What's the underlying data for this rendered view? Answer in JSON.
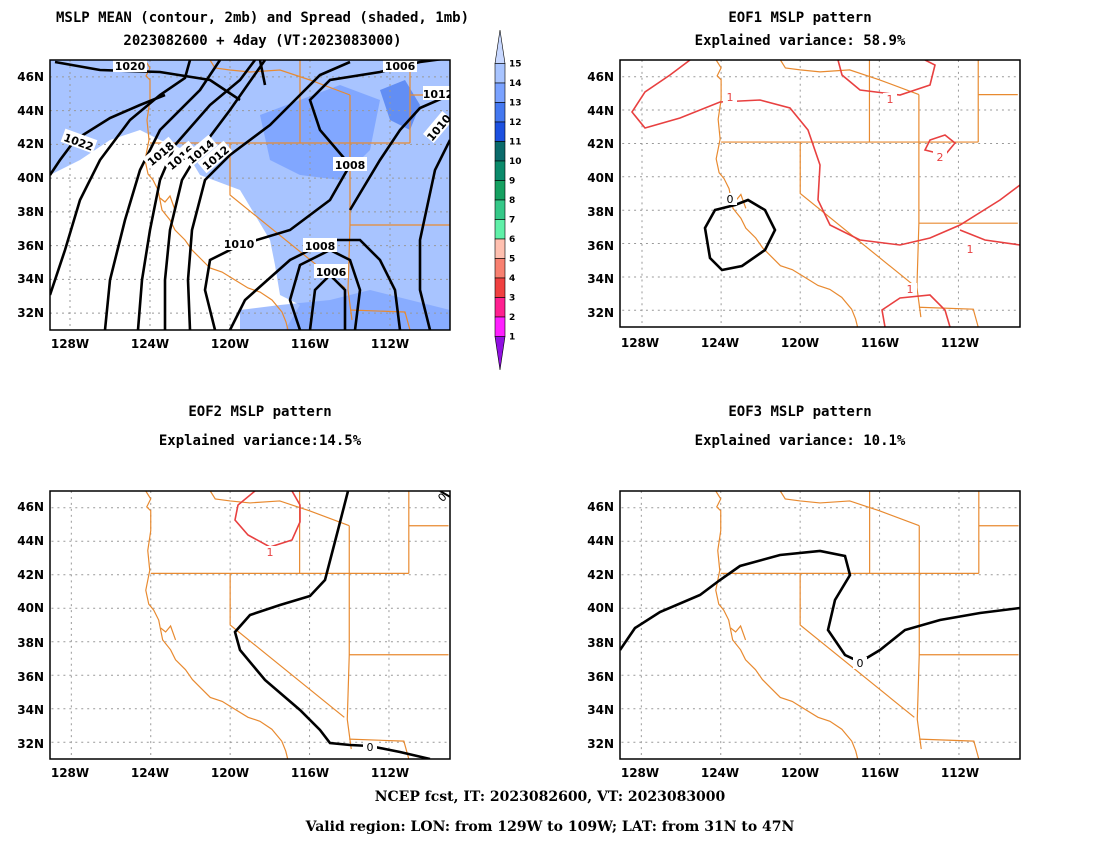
{
  "panels": [
    {
      "id": "p1",
      "title_lines": [
        "MSLP MEAN (contour, 2mb) and Spread (shaded, 1mb)",
        "2023082600 + 4day (VT:2023083000)"
      ]
    },
    {
      "id": "p2",
      "title_lines": [
        "EOF1 MSLP pattern",
        "Explained variance: 58.9%"
      ]
    },
    {
      "id": "p3",
      "title_lines": [
        "EOF2 MSLP pattern",
        "Explained variance:14.5%"
      ]
    },
    {
      "id": "p4",
      "title_lines": [
        "EOF3 MSLP pattern",
        "Explained variance: 10.1%"
      ]
    }
  ],
  "axes": {
    "lon_range": [
      -129,
      -109
    ],
    "lat_range": [
      31,
      47
    ],
    "lon_ticks": [
      "128W",
      "124W",
      "120W",
      "116W",
      "112W"
    ],
    "lat_ticks": [
      "32N",
      "34N",
      "36N",
      "38N",
      "40N",
      "42N",
      "44N",
      "46N"
    ]
  },
  "colorbar": {
    "labels": [
      "1",
      "2",
      "3",
      "4",
      "5",
      "6",
      "7",
      "8",
      "9",
      "10",
      "11",
      "12",
      "13",
      "14",
      "15"
    ],
    "colors": [
      "#c8d8ff",
      "#a8c4ff",
      "#7aa2ff",
      "#4478f0",
      "#1c50e0",
      "#0a6a6a",
      "#0a8a6a",
      "#15a060",
      "#35c888",
      "#60f0a8",
      "#ffc0b0",
      "#f88070",
      "#f04040",
      "#ff2090",
      "#ff20ff",
      "#9010e0"
    ]
  },
  "contour_labels": {
    "p1": [
      "1020",
      "1006",
      "1010",
      "1012",
      "1022",
      "1018",
      "1016",
      "1014",
      "1012",
      "1008",
      "1010",
      "1008",
      "1006"
    ],
    "p2": [
      "1",
      "1",
      "2",
      "1",
      "1",
      "0"
    ],
    "p3": [
      "1",
      "0",
      "0"
    ],
    "p4": [
      "0"
    ]
  },
  "footer": {
    "line1": "NCEP fcst, IT: 2023082600, VT: 2023083000",
    "line2": "Valid region: LON: from 129W to 109W; LAT: from 31N to 47N"
  }
}
